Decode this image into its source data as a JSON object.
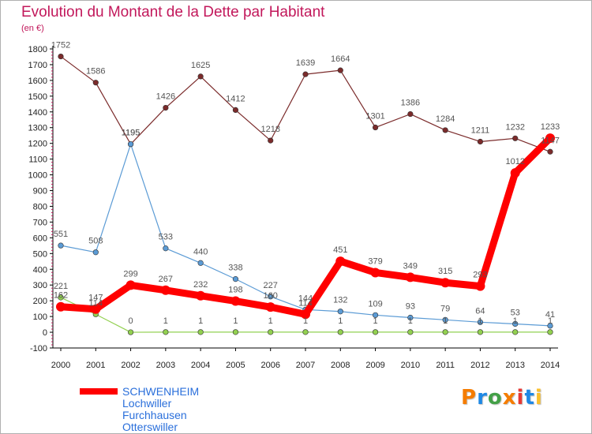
{
  "header": {
    "title": "Evolution du Montant de la Dette par Habitant",
    "subtitle": "(en €)"
  },
  "brand": {
    "letters": [
      "P",
      "r",
      "o",
      "x",
      "i",
      "t",
      "i"
    ],
    "colors": [
      "#f57c00",
      "#1e88e5",
      "#43a047",
      "#f57c00",
      "#e53935",
      "#1e88e5",
      "#fbc02d"
    ]
  },
  "chart_data": {
    "type": "line",
    "title": "Evolution du Montant de la Dette par Habitant",
    "subtitle": "(en €)",
    "x": [
      "2000",
      "2001",
      "2002",
      "2003",
      "2004",
      "2005",
      "2006",
      "2007",
      "2008",
      "2009",
      "2010",
      "2011",
      "2012",
      "2013",
      "2014"
    ],
    "ylim": [
      -100,
      1800
    ],
    "yticks": [
      -100,
      0,
      100,
      200,
      300,
      400,
      500,
      600,
      700,
      800,
      900,
      1000,
      1100,
      1200,
      1300,
      1400,
      1500,
      1600,
      1700,
      1800
    ],
    "grid": false,
    "legend_position": "bottom-left",
    "series": [
      {
        "name": "SCHWENHEIM",
        "color": "#ff0000",
        "values": [
          162,
          147,
          299,
          267,
          232,
          198,
          160,
          114,
          451,
          379,
          349,
          315,
          293,
          1012,
          1233
        ]
      },
      {
        "name": "Lochwiller",
        "color": "#5b9bd5",
        "values": [
          551,
          508,
          1195,
          533,
          440,
          338,
          227,
          144,
          132,
          109,
          93,
          79,
          64,
          53,
          41
        ]
      },
      {
        "name": "Furchhausen",
        "color": "#92d050",
        "values": [
          221,
          114,
          0,
          1,
          1,
          1,
          1,
          1,
          1,
          1,
          1,
          1,
          1,
          1,
          1
        ]
      },
      {
        "name": "Otterswiller",
        "color": "#7b2b2b",
        "values": [
          1752,
          1586,
          1195,
          1426,
          1625,
          1412,
          1218,
          1639,
          1664,
          1301,
          1386,
          1284,
          1211,
          1232,
          1147
        ]
      }
    ]
  }
}
